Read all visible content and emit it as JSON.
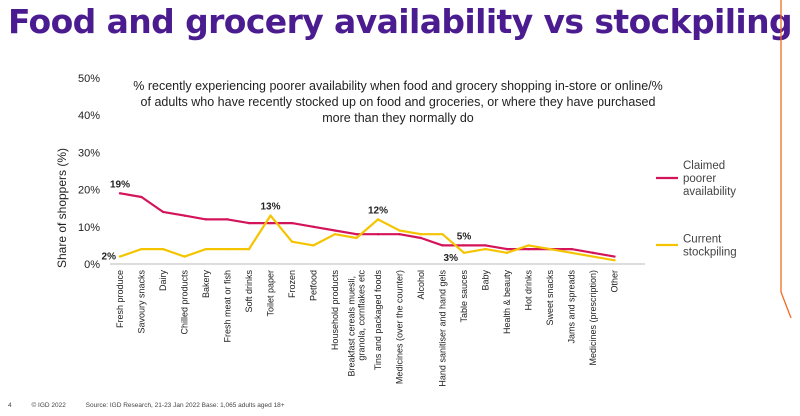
{
  "page": {
    "title": "Food and grocery availability vs stockpiling",
    "footer": {
      "page_number": "4",
      "copyright": "© IGD 2022",
      "source": "Source: IGD Research, 21-23 Jan 2022  Base: 1,065 adults aged 18+"
    }
  },
  "colors": {
    "title": "#4b1c8f",
    "availability": "#d4145a",
    "stockpiling": "#f5c400",
    "accent_line": "#f26b21"
  },
  "chart_data": {
    "type": "line",
    "subtitle": "% recently experiencing poorer availability when food and grocery shopping in-store or online/% of adults who have recently stocked up on food and groceries, or where they have purchased more than they normally do",
    "ylabel": "Share of shoppers (%)",
    "xlabel": "",
    "ylim": [
      0,
      50
    ],
    "yticks": [
      "0%",
      "10%",
      "20%",
      "30%",
      "40%",
      "50%"
    ],
    "grid": false,
    "legend_position": "right",
    "categories": [
      "Fresh produce",
      "Savoury snacks",
      "Dairy",
      "Chilled products",
      "Bakery",
      "Fresh meat or fish",
      "Soft drinks",
      "Toilet paper",
      "Frozen",
      "Petfood",
      "Household products",
      "Breakfast cereals muesli, granola, cornflakes etc",
      "Tins and packaged foods",
      "Medicines (over the counter)",
      "Alcohol",
      "Hand sanitiser and hand gels",
      "Table sauces",
      "Baby",
      "Health & beauty",
      "Hot drinks",
      "Sweet snacks",
      "Jams and spreads",
      "Medicines (prescription)",
      "Other"
    ],
    "series": [
      {
        "name": "Claimed poorer availability",
        "color": "#d4145a",
        "values": [
          19,
          18,
          14,
          13,
          12,
          12,
          11,
          11,
          11,
          10,
          9,
          8,
          8,
          8,
          7,
          5,
          5,
          5,
          4,
          4,
          4,
          4,
          3,
          2
        ]
      },
      {
        "name": "Current stockpiling",
        "color": "#f5c400",
        "values": [
          2,
          4,
          4,
          2,
          4,
          4,
          4,
          13,
          6,
          5,
          8,
          7,
          12,
          9,
          8,
          8,
          3,
          4,
          3,
          5,
          4,
          3,
          2,
          1
        ]
      }
    ],
    "data_labels": [
      {
        "series": 0,
        "index": 0,
        "text": "19%"
      },
      {
        "series": 1,
        "index": 0,
        "text": "2%"
      },
      {
        "series": 1,
        "index": 7,
        "text": "13%"
      },
      {
        "series": 1,
        "index": 12,
        "text": "12%"
      },
      {
        "series": 1,
        "index": 16,
        "text": "3%"
      },
      {
        "series": 0,
        "index": 16,
        "text": "5%"
      }
    ]
  }
}
